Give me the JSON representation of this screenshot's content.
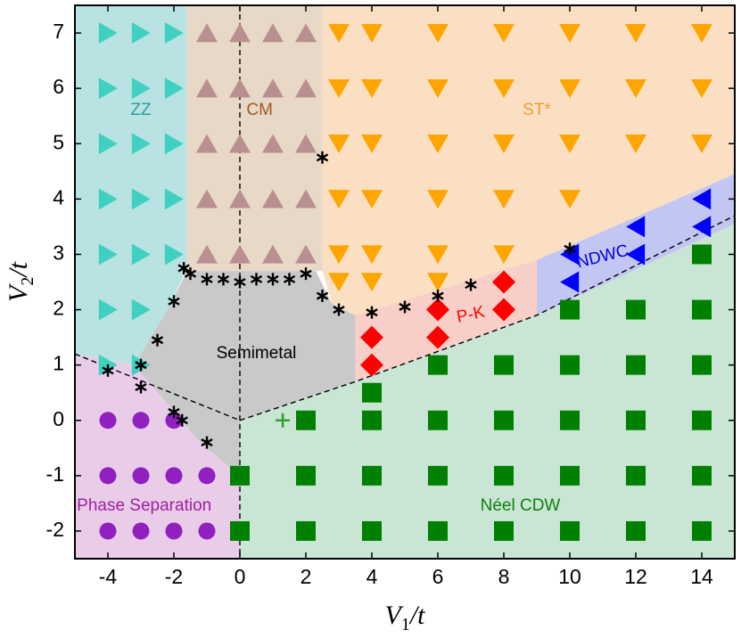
{
  "chart_data": {
    "type": "scatter",
    "title": "",
    "xlabel": "V_1/t",
    "ylabel": "V_2/t",
    "xlim": [
      -5,
      15
    ],
    "ylim": [
      -2.5,
      7.5
    ],
    "xticks": [
      -4,
      -2,
      0,
      2,
      4,
      6,
      8,
      10,
      12,
      14
    ],
    "yticks": [
      -2,
      -1,
      0,
      1,
      2,
      3,
      4,
      5,
      6,
      7
    ],
    "regions": [
      {
        "name": "ZZ",
        "color": "#b9e3e3",
        "polygon": [
          [
            -5,
            7.5
          ],
          [
            -1.6,
            7.5
          ],
          [
            -1.6,
            2.75
          ],
          [
            -2.1,
            2.1
          ],
          [
            -3.2,
            1.0
          ],
          [
            -5,
            1.2
          ]
        ]
      },
      {
        "name": "CM",
        "color": "#e8d8c8",
        "polygon": [
          [
            -1.6,
            7.5
          ],
          [
            2.5,
            7.5
          ],
          [
            2.5,
            2.7
          ],
          [
            -1.6,
            2.7
          ]
        ]
      },
      {
        "name": "ST*",
        "color": "#fbdfc3",
        "polygon": [
          [
            2.5,
            7.5
          ],
          [
            15,
            7.5
          ],
          [
            15,
            4.45
          ],
          [
            9,
            2.9
          ],
          [
            3.5,
            1.9
          ],
          [
            2.8,
            2.1
          ],
          [
            2.5,
            2.7
          ]
        ]
      },
      {
        "name": "Semimetal",
        "color": "#c9c9c9",
        "polygon": [
          [
            -1.6,
            2.7
          ],
          [
            2.3,
            2.7
          ],
          [
            2.8,
            2.1
          ],
          [
            3.5,
            1.9
          ],
          [
            3.5,
            0.7
          ],
          [
            0,
            0
          ],
          [
            0,
            -1
          ],
          [
            -1.2,
            -0.4
          ],
          [
            -3.2,
            1.0
          ],
          [
            -2.1,
            2.1
          ]
        ]
      },
      {
        "name": "P-K",
        "color": "#f8cfc8",
        "polygon": [
          [
            3.5,
            1.9
          ],
          [
            9,
            2.9
          ],
          [
            9,
            1.9
          ],
          [
            3.5,
            0.7
          ]
        ]
      },
      {
        "name": "NDWC",
        "color": "#c2c6f2",
        "polygon": [
          [
            9,
            2.9
          ],
          [
            15,
            4.45
          ],
          [
            15,
            3.55
          ],
          [
            9,
            1.9
          ]
        ]
      },
      {
        "name": "Phase Separation",
        "color": "#e8cce8",
        "polygon": [
          [
            -5,
            1.2
          ],
          [
            -3.2,
            1.0
          ],
          [
            -1.2,
            -0.4
          ],
          [
            0,
            -1
          ],
          [
            0,
            -2.5
          ],
          [
            -5,
            -2.5
          ]
        ]
      },
      {
        "name": "Néel CDW",
        "color": "#c9e6d4",
        "polygon": [
          [
            0,
            -2.5
          ],
          [
            15,
            -2.5
          ],
          [
            15,
            3.55
          ],
          [
            9,
            1.9
          ],
          [
            3.5,
            0.7
          ],
          [
            0,
            0
          ]
        ]
      }
    ],
    "region_labels": [
      {
        "text": "ZZ",
        "x": -3.0,
        "y": 5.6,
        "color": "#2a9e9e"
      },
      {
        "text": "CM",
        "x": 0.6,
        "y": 5.6,
        "color": "#a05a20"
      },
      {
        "text": "ST*",
        "x": 9.0,
        "y": 5.6,
        "color": "#f0a030"
      },
      {
        "text": "Semimetal",
        "x": 0.5,
        "y": 1.2,
        "color": "#000000"
      },
      {
        "text": "P-K",
        "x": 7.0,
        "y": 1.9,
        "color": "#ff0000",
        "size": 13,
        "rotate": -12
      },
      {
        "text": "NDWC",
        "x": 11.0,
        "y": 2.95,
        "color": "#0000e0",
        "size": 13,
        "rotate": -14
      },
      {
        "text": "Phase Separation",
        "x": -2.9,
        "y": -1.55,
        "color": "#a020a0",
        "size": 16
      },
      {
        "text": "Néel CDW",
        "x": 8.5,
        "y": -1.55,
        "color": "#108010"
      }
    ],
    "series": [
      {
        "name": "ZZ",
        "marker": "triangle-right",
        "color": "#40d0c0",
        "points": [
          [
            -4,
            7
          ],
          [
            -3,
            7
          ],
          [
            -2,
            7
          ],
          [
            -4,
            6
          ],
          [
            -3,
            6
          ],
          [
            -2,
            6
          ],
          [
            -4,
            5
          ],
          [
            -3,
            5
          ],
          [
            -2,
            5
          ],
          [
            -4,
            4
          ],
          [
            -3,
            4
          ],
          [
            -2,
            4
          ],
          [
            -4,
            3
          ],
          [
            -3,
            3
          ],
          [
            -2,
            3
          ],
          [
            -4,
            2
          ],
          [
            -3,
            2
          ],
          [
            -4,
            1
          ],
          [
            -3,
            1
          ]
        ]
      },
      {
        "name": "CM",
        "marker": "triangle-up",
        "color": "#b89090",
        "points": [
          [
            -1,
            7
          ],
          [
            0,
            7
          ],
          [
            1,
            7
          ],
          [
            2,
            7
          ],
          [
            -1,
            6
          ],
          [
            0,
            6
          ],
          [
            1,
            6
          ],
          [
            2,
            6
          ],
          [
            -1,
            5
          ],
          [
            0,
            5
          ],
          [
            1,
            5
          ],
          [
            2,
            5
          ],
          [
            -1,
            4
          ],
          [
            0,
            4
          ],
          [
            1,
            4
          ],
          [
            2,
            4
          ],
          [
            -1,
            3
          ],
          [
            0,
            3
          ],
          [
            1,
            3
          ],
          [
            2,
            3
          ]
        ]
      },
      {
        "name": "ST*",
        "marker": "triangle-down",
        "color": "#ffa500",
        "points": [
          [
            3,
            7
          ],
          [
            4,
            7
          ],
          [
            6,
            7
          ],
          [
            8,
            7
          ],
          [
            10,
            7
          ],
          [
            12,
            7
          ],
          [
            14,
            7
          ],
          [
            3,
            6
          ],
          [
            4,
            6
          ],
          [
            6,
            6
          ],
          [
            8,
            6
          ],
          [
            10,
            6
          ],
          [
            12,
            6
          ],
          [
            14,
            6
          ],
          [
            3,
            5
          ],
          [
            4,
            5
          ],
          [
            6,
            5
          ],
          [
            8,
            5
          ],
          [
            10,
            5
          ],
          [
            12,
            5
          ],
          [
            14,
            5
          ],
          [
            3,
            4
          ],
          [
            4,
            4
          ],
          [
            6,
            4
          ],
          [
            8,
            4
          ],
          [
            10,
            4
          ],
          [
            3,
            3
          ],
          [
            4,
            3
          ],
          [
            6,
            3
          ],
          [
            8,
            3
          ],
          [
            3,
            2.5
          ],
          [
            4,
            2.5
          ],
          [
            6,
            2.5
          ]
        ]
      },
      {
        "name": "NDWC",
        "marker": "triangle-left",
        "color": "#0000ff",
        "points": [
          [
            14,
            4
          ],
          [
            12,
            3.5
          ],
          [
            14,
            3.5
          ],
          [
            10,
            3
          ],
          [
            12,
            3
          ],
          [
            10,
            2.5
          ]
        ]
      },
      {
        "name": "P-K",
        "marker": "diamond",
        "color": "#ff0000",
        "points": [
          [
            8,
            2.5
          ],
          [
            6,
            2
          ],
          [
            8,
            2
          ],
          [
            4,
            1.5
          ],
          [
            6,
            1.5
          ],
          [
            4,
            1
          ]
        ]
      },
      {
        "name": "Néel CDW",
        "marker": "square",
        "color": "#008000",
        "points": [
          [
            14,
            3
          ],
          [
            10,
            2
          ],
          [
            12,
            2
          ],
          [
            14,
            2
          ],
          [
            6,
            1
          ],
          [
            8,
            1
          ],
          [
            10,
            1
          ],
          [
            12,
            1
          ],
          [
            14,
            1
          ],
          [
            4,
            0.5
          ],
          [
            2,
            0
          ],
          [
            4,
            0
          ],
          [
            6,
            0
          ],
          [
            8,
            0
          ],
          [
            10,
            0
          ],
          [
            12,
            0
          ],
          [
            14,
            0
          ],
          [
            0,
            -1
          ],
          [
            2,
            -1
          ],
          [
            4,
            -1
          ],
          [
            6,
            -1
          ],
          [
            8,
            -1
          ],
          [
            10,
            -1
          ],
          [
            12,
            -1
          ],
          [
            14,
            -1
          ],
          [
            0,
            -2
          ],
          [
            2,
            -2
          ],
          [
            4,
            -2
          ],
          [
            6,
            -2
          ],
          [
            8,
            -2
          ],
          [
            10,
            -2
          ],
          [
            12,
            -2
          ],
          [
            14,
            -2
          ]
        ]
      },
      {
        "name": "Phase Separation",
        "marker": "circle",
        "color": "#9020c0",
        "points": [
          [
            -4,
            0
          ],
          [
            -3,
            0
          ],
          [
            -2,
            0
          ],
          [
            -4,
            -1
          ],
          [
            -3,
            -1
          ],
          [
            -2,
            -1
          ],
          [
            -1,
            -1
          ],
          [
            -4,
            -2
          ],
          [
            -3,
            -2
          ],
          [
            -2,
            -2
          ],
          [
            -1,
            -2
          ]
        ]
      },
      {
        "name": "Transition points",
        "marker": "asterisk",
        "color": "#000000",
        "points": [
          [
            2.5,
            4.75
          ],
          [
            -1.7,
            2.75
          ],
          [
            -1.5,
            2.65
          ],
          [
            -1,
            2.55
          ],
          [
            -0.5,
            2.55
          ],
          [
            0,
            2.5
          ],
          [
            0.5,
            2.55
          ],
          [
            1,
            2.55
          ],
          [
            1.5,
            2.55
          ],
          [
            2,
            2.65
          ],
          [
            2.5,
            2.25
          ],
          [
            3,
            2.0
          ],
          [
            4,
            1.95
          ],
          [
            5,
            2.05
          ],
          [
            6,
            2.25
          ],
          [
            7,
            2.45
          ],
          [
            10,
            3.1
          ],
          [
            -2,
            2.15
          ],
          [
            -2.5,
            1.45
          ],
          [
            -3,
            1.0
          ],
          [
            -4,
            0.9
          ],
          [
            -3,
            0.6
          ],
          [
            -2,
            0.15
          ],
          [
            -1.75,
            0.0
          ],
          [
            -1,
            -0.4
          ]
        ]
      },
      {
        "name": "Marker",
        "marker": "plus",
        "color": "#30a030",
        "points": [
          [
            1.3,
            0
          ]
        ]
      }
    ],
    "dashed_lines": [
      [
        [
          0,
          7.5
        ],
        [
          0,
          -2.5
        ]
      ],
      [
        [
          -5,
          1.2
        ],
        [
          0,
          0
        ]
      ],
      [
        [
          0,
          0
        ],
        [
          3.5,
          0.7
        ],
        [
          9,
          1.9
        ],
        [
          15,
          3.7
        ]
      ]
    ]
  }
}
